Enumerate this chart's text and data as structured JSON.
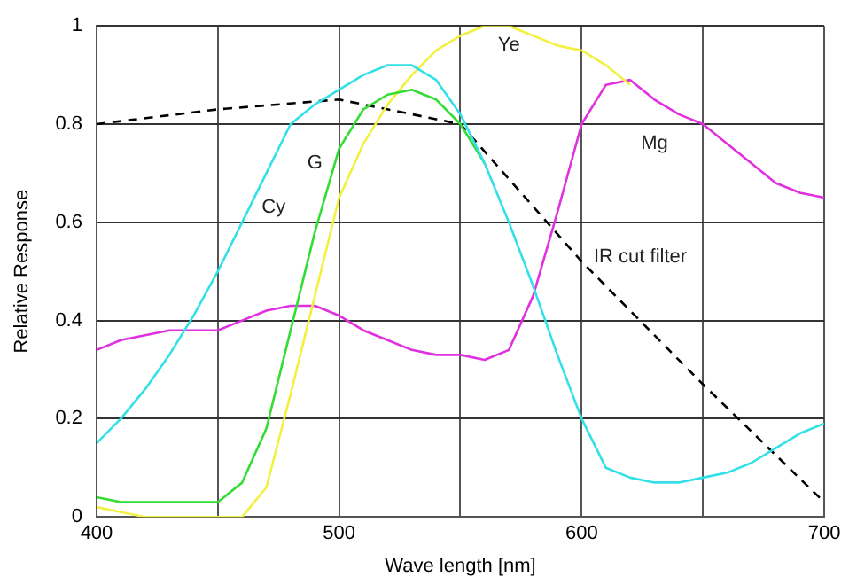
{
  "chart_data": {
    "type": "line",
    "xlabel": "Wave length [nm]",
    "ylabel": "Relative Response",
    "xlim": [
      400,
      700
    ],
    "xticks": [
      400,
      {
        "value": 450,
        "label": null
      },
      500,
      {
        "value": 550,
        "label": null
      },
      600,
      {
        "value": 650,
        "label": null
      },
      700
    ],
    "ylim": [
      0,
      1
    ],
    "yticks": [
      0,
      0.2,
      0.4,
      0.6,
      0.8,
      1
    ],
    "grid": true,
    "legend": false,
    "marker": "none",
    "series": [
      {
        "name": "Cy",
        "color": "#33e0e8",
        "x": [
          400,
          410,
          420,
          430,
          440,
          450,
          460,
          470,
          480,
          490,
          500,
          510,
          520,
          530,
          540,
          550,
          560,
          570,
          580,
          590,
          600,
          610,
          620,
          630,
          640,
          650,
          660,
          670,
          680,
          690,
          700
        ],
        "values": [
          0.15,
          0.2,
          0.26,
          0.33,
          0.41,
          0.5,
          0.6,
          0.7,
          0.8,
          0.84,
          0.87,
          0.9,
          0.92,
          0.92,
          0.89,
          0.82,
          0.72,
          0.6,
          0.47,
          0.33,
          0.2,
          0.1,
          0.08,
          0.07,
          0.07,
          0.08,
          0.09,
          0.11,
          0.14,
          0.17,
          0.19
        ]
      },
      {
        "name": "G",
        "color": "#33dd33",
        "x": [
          400,
          410,
          420,
          430,
          440,
          450,
          460,
          470,
          480,
          490,
          500,
          510,
          520,
          530,
          540,
          550,
          560
        ],
        "values": [
          0.04,
          0.03,
          0.03,
          0.03,
          0.03,
          0.03,
          0.07,
          0.18,
          0.38,
          0.58,
          0.75,
          0.83,
          0.86,
          0.87,
          0.85,
          0.8,
          0.72
        ]
      },
      {
        "name": "Ye",
        "color": "#f2f040",
        "x": [
          400,
          410,
          420,
          430,
          440,
          450,
          460,
          470,
          480,
          490,
          500,
          510,
          520,
          530,
          540,
          550,
          560,
          570,
          580,
          590,
          600,
          610,
          620
        ],
        "values": [
          0.02,
          0.01,
          0,
          0,
          0,
          0,
          0,
          0.06,
          0.25,
          0.45,
          0.65,
          0.76,
          0.84,
          0.9,
          0.95,
          0.98,
          1,
          1,
          0.98,
          0.96,
          0.95,
          0.92,
          0.88
        ]
      },
      {
        "name": "Mg",
        "color": "#e030e0",
        "x": [
          400,
          410,
          420,
          430,
          440,
          450,
          460,
          470,
          480,
          490,
          500,
          510,
          520,
          530,
          540,
          550,
          560,
          570,
          580,
          590,
          600,
          610,
          620,
          630,
          640,
          650,
          660,
          670,
          680,
          690,
          700
        ],
        "values": [
          0.34,
          0.36,
          0.37,
          0.38,
          0.38,
          0.38,
          0.4,
          0.42,
          0.43,
          0.43,
          0.41,
          0.38,
          0.36,
          0.34,
          0.33,
          0.33,
          0.32,
          0.34,
          0.45,
          0.62,
          0.8,
          0.88,
          0.89,
          0.85,
          0.82,
          0.8,
          0.76,
          0.72,
          0.68,
          0.66,
          0.65
        ]
      },
      {
        "name": "IR cut filter",
        "color": "#000000",
        "line_style": "dashed",
        "x": [
          400,
          450,
          500,
          550,
          600,
          650,
          700
        ],
        "values": [
          0.8,
          0.83,
          0.85,
          0.8,
          0.52,
          0.27,
          0.03
        ]
      }
    ]
  }
}
